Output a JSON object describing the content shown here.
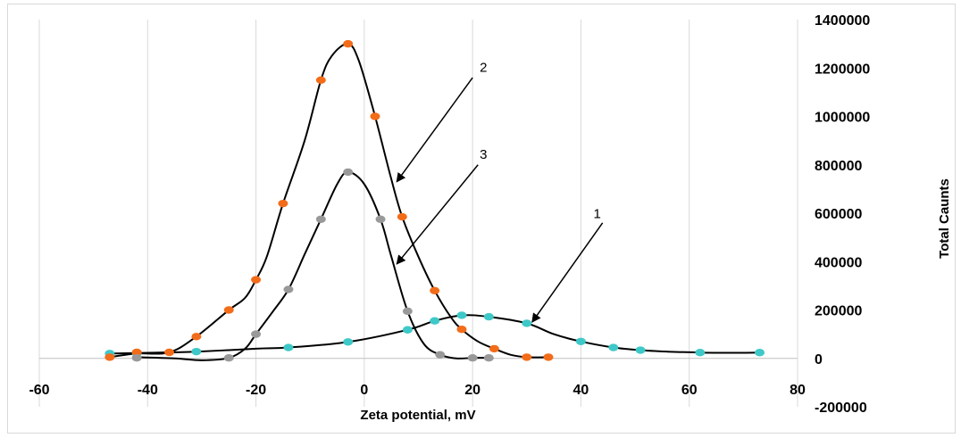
{
  "chart_data": {
    "type": "scatter",
    "title": "",
    "xlabel": "Zeta potential, mV",
    "ylabel": "Total Caunts",
    "xlim": [
      -60,
      80
    ],
    "ylim": [
      -200000,
      1400000
    ],
    "x_ticks": [
      -60,
      -40,
      -20,
      0,
      20,
      40,
      60,
      80
    ],
    "y_ticks": [
      -200000,
      0,
      200000,
      400000,
      600000,
      800000,
      1000000,
      1200000,
      1400000
    ],
    "y_axis_side": "right",
    "grid": "vertical",
    "legend": "none",
    "series": [
      {
        "color": "#3fc8c8",
        "curve_label": "1",
        "points": [
          [
            -47,
            20000
          ],
          [
            -42,
            20000
          ],
          [
            -31,
            28000
          ],
          [
            -14,
            45000
          ],
          [
            -3,
            68000
          ],
          [
            8,
            118000
          ],
          [
            13,
            155000
          ],
          [
            18,
            178000
          ],
          [
            23,
            172000
          ],
          [
            30,
            145000
          ],
          [
            40,
            70000
          ],
          [
            46,
            45000
          ],
          [
            51,
            34000
          ],
          [
            62,
            24000
          ],
          [
            73,
            24000
          ]
        ],
        "curve": [
          [
            -47,
            20000
          ],
          [
            -40,
            23000
          ],
          [
            -31,
            28000
          ],
          [
            -20,
            40000
          ],
          [
            -14,
            45000
          ],
          [
            -3,
            68000
          ],
          [
            8,
            118000
          ],
          [
            13,
            155000
          ],
          [
            18,
            178000
          ],
          [
            23,
            172000
          ],
          [
            30,
            145000
          ],
          [
            35,
            100000
          ],
          [
            40,
            70000
          ],
          [
            46,
            45000
          ],
          [
            51,
            34000
          ],
          [
            56,
            28000
          ],
          [
            62,
            24000
          ],
          [
            68,
            23000
          ],
          [
            73,
            24000
          ]
        ]
      },
      {
        "color": "#f36c19",
        "curve_label": "2",
        "points": [
          [
            -47,
            5000
          ],
          [
            -42,
            25000
          ],
          [
            -36,
            25000
          ],
          [
            -31,
            90000
          ],
          [
            -25,
            200000
          ],
          [
            -20,
            325000
          ],
          [
            -15,
            640000
          ],
          [
            -8,
            1150000
          ],
          [
            -3,
            1300000
          ],
          [
            2,
            1000000
          ],
          [
            7,
            585000
          ],
          [
            13,
            280000
          ],
          [
            18,
            120000
          ],
          [
            24,
            40000
          ],
          [
            30,
            5000
          ],
          [
            34,
            5000
          ]
        ],
        "curve": [
          [
            -47,
            5000
          ],
          [
            -42,
            20000
          ],
          [
            -36,
            25000
          ],
          [
            -31,
            90000
          ],
          [
            -25,
            200000
          ],
          [
            -22,
            250000
          ],
          [
            -20,
            325000
          ],
          [
            -18,
            420000
          ],
          [
            -15,
            640000
          ],
          [
            -11,
            900000
          ],
          [
            -8,
            1150000
          ],
          [
            -6,
            1250000
          ],
          [
            -3,
            1300000
          ],
          [
            -1,
            1230000
          ],
          [
            2,
            1000000
          ],
          [
            5,
            740000
          ],
          [
            7,
            585000
          ],
          [
            10,
            420000
          ],
          [
            13,
            280000
          ],
          [
            16,
            170000
          ],
          [
            18,
            120000
          ],
          [
            21,
            70000
          ],
          [
            24,
            40000
          ],
          [
            27,
            15000
          ],
          [
            30,
            5000
          ],
          [
            34,
            5000
          ]
        ]
      },
      {
        "color": "#999999",
        "curve_label": "3",
        "points": [
          [
            -42,
            2000
          ],
          [
            -25,
            2000
          ],
          [
            -20,
            100000
          ],
          [
            -14,
            285000
          ],
          [
            -8,
            575000
          ],
          [
            -3,
            770000
          ],
          [
            3,
            575000
          ],
          [
            8,
            195000
          ],
          [
            14,
            15000
          ],
          [
            20,
            2000
          ],
          [
            23,
            2000
          ]
        ],
        "curve": [
          [
            -42,
            5000
          ],
          [
            -35,
            0
          ],
          [
            -30,
            -8000
          ],
          [
            -25,
            2000
          ],
          [
            -22,
            40000
          ],
          [
            -20,
            100000
          ],
          [
            -17,
            190000
          ],
          [
            -14,
            285000
          ],
          [
            -11,
            430000
          ],
          [
            -8,
            575000
          ],
          [
            -5,
            720000
          ],
          [
            -3,
            770000
          ],
          [
            0,
            720000
          ],
          [
            3,
            575000
          ],
          [
            5,
            420000
          ],
          [
            8,
            195000
          ],
          [
            11,
            60000
          ],
          [
            14,
            15000
          ],
          [
            17,
            0
          ],
          [
            20,
            2000
          ],
          [
            23,
            2000
          ]
        ]
      }
    ],
    "annotations": [
      {
        "text": "2",
        "label_at": [
          22,
          1185000
        ],
        "arrow_from": [
          20,
          1160000
        ],
        "arrow_to": [
          6,
          730000
        ]
      },
      {
        "text": "3",
        "label_at": [
          22,
          825000
        ],
        "arrow_from": [
          21,
          800000
        ],
        "arrow_to": [
          6,
          390000
        ]
      },
      {
        "text": "1",
        "label_at": [
          43,
          580000
        ],
        "arrow_from": [
          44,
          560000
        ],
        "arrow_to": [
          31,
          150000
        ]
      }
    ]
  }
}
